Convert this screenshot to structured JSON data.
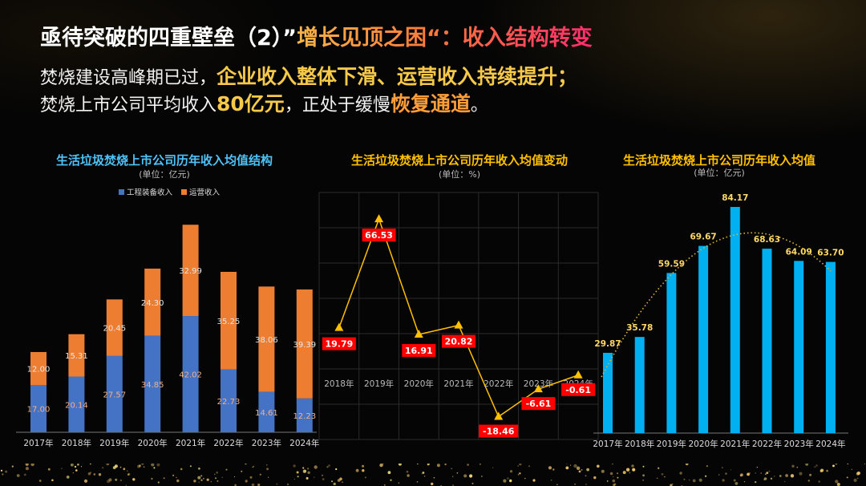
{
  "slide": {
    "title_prefix": "亟待突破的四重壁垒（2）”",
    "title_highlight": "增长见顶之困“：收入结构转变",
    "line1_plain": "焚烧建设高峰期已过，",
    "line1_highlight": "企业收入整体下滑、运营收入持续提升",
    "line1_end": "；",
    "line2_plain1": "焚烧上市公司平均收入",
    "line2_value": "80亿元",
    "line2_plain2": "，正处于缓慢",
    "line2_highlight": "恢复通道",
    "line2_end": "。"
  },
  "colors": {
    "equip": "#4472c4",
    "ops": "#ed7d31",
    "line": "#ffc000",
    "bar_cyan": "#00b0f0",
    "title_blue": "#4fc3f7",
    "title_gold": "#ffc000",
    "label_red": "#ff0000"
  },
  "chart_data": [
    {
      "type": "bar",
      "stacked": true,
      "title": "生活垃圾焚烧上市公司历年收入均值结构",
      "unit": "(单位：亿元)",
      "categories": [
        "2017年",
        "2018年",
        "2019年",
        "2020年",
        "2021年",
        "2022年",
        "2023年",
        "2024年"
      ],
      "series": [
        {
          "name": "工程装备收入",
          "values": [
            17.0,
            20.14,
            27.57,
            34.85,
            42.02,
            22.73,
            14.61,
            12.23
          ]
        },
        {
          "name": "运营收入",
          "values": [
            12.0,
            15.31,
            20.45,
            24.3,
            32.99,
            35.25,
            38.06,
            39.39
          ]
        }
      ],
      "legend": "top",
      "grid": false
    },
    {
      "type": "line",
      "title": "生活垃圾焚烧上市公司历年收入均值变动",
      "unit": "(单位：%)",
      "categories": [
        "2018年",
        "2019年",
        "2020年",
        "2021年",
        "2022年",
        "2023年",
        "2024年"
      ],
      "values": [
        19.79,
        66.53,
        16.91,
        20.82,
        -18.46,
        -6.61,
        -0.61
      ],
      "labels": [
        "19.79",
        "66.53",
        "16.91",
        "20.82",
        "-18.46",
        "-6.61",
        "-0.61"
      ],
      "marker": "triangle",
      "grid": true
    },
    {
      "type": "bar",
      "title": "生活垃圾焚烧上市公司历年收入均值",
      "unit": "(单位：亿元)",
      "categories": [
        "2017年",
        "2018年",
        "2019年",
        "2020年",
        "2021年",
        "2022年",
        "2023年",
        "2024年"
      ],
      "values": [
        29.87,
        35.78,
        59.59,
        69.67,
        84.17,
        68.63,
        64.09,
        63.7
      ],
      "labels": [
        "29.87",
        "35.78",
        "59.59",
        "69.67",
        "84.17",
        "68.63",
        "64.09",
        "63.70"
      ],
      "trendline": "polynomial",
      "grid": false
    }
  ]
}
